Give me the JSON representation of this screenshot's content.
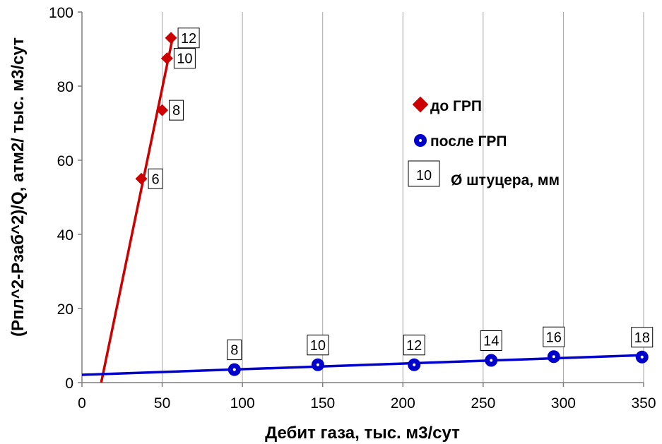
{
  "chart_data": {
    "type": "scatter",
    "xlabel": "Дебит газа, тыс. м3/сут",
    "ylabel": "(Рпл^2-Рзаб^2)/Q, атм2/ тыс. м3/сут",
    "xlim": [
      0,
      350
    ],
    "ylim": [
      0,
      100
    ],
    "xticks": [
      "0",
      "50",
      "100",
      "150",
      "200",
      "250",
      "300",
      "350"
    ],
    "yticks": [
      "0",
      "20",
      "40",
      "60",
      "80",
      "100"
    ],
    "grid": "vertical",
    "legend_position": "right",
    "series": [
      {
        "name": "до ГРП",
        "marker": "diamond",
        "color": "#cc0000",
        "points": [
          {
            "x": 37,
            "y": 55,
            "label": "6"
          },
          {
            "x": 50,
            "y": 73.5,
            "label": "8"
          },
          {
            "x": 53,
            "y": 87.5,
            "label": "10"
          },
          {
            "x": 55.5,
            "y": 93,
            "label": "12"
          }
        ],
        "trendline": {
          "x": [
            12,
            56.5
          ],
          "y": [
            0,
            93
          ]
        }
      },
      {
        "name": "после ГРП",
        "marker": "circle",
        "color": "#0000cc",
        "points": [
          {
            "x": 95,
            "y": 3.5,
            "label": "8"
          },
          {
            "x": 147,
            "y": 4.8,
            "label": "10"
          },
          {
            "x": 207,
            "y": 4.8,
            "label": "12"
          },
          {
            "x": 255,
            "y": 6,
            "label": "14"
          },
          {
            "x": 294,
            "y": 7,
            "label": "16"
          },
          {
            "x": 349,
            "y": 6.9,
            "label": "18"
          }
        ],
        "trendline": {
          "x": [
            0,
            350
          ],
          "y": [
            2.1,
            7.4
          ]
        }
      }
    ],
    "legend": {
      "label_box_sample": "10",
      "label_box_text": "Ø штуцера, мм"
    }
  }
}
